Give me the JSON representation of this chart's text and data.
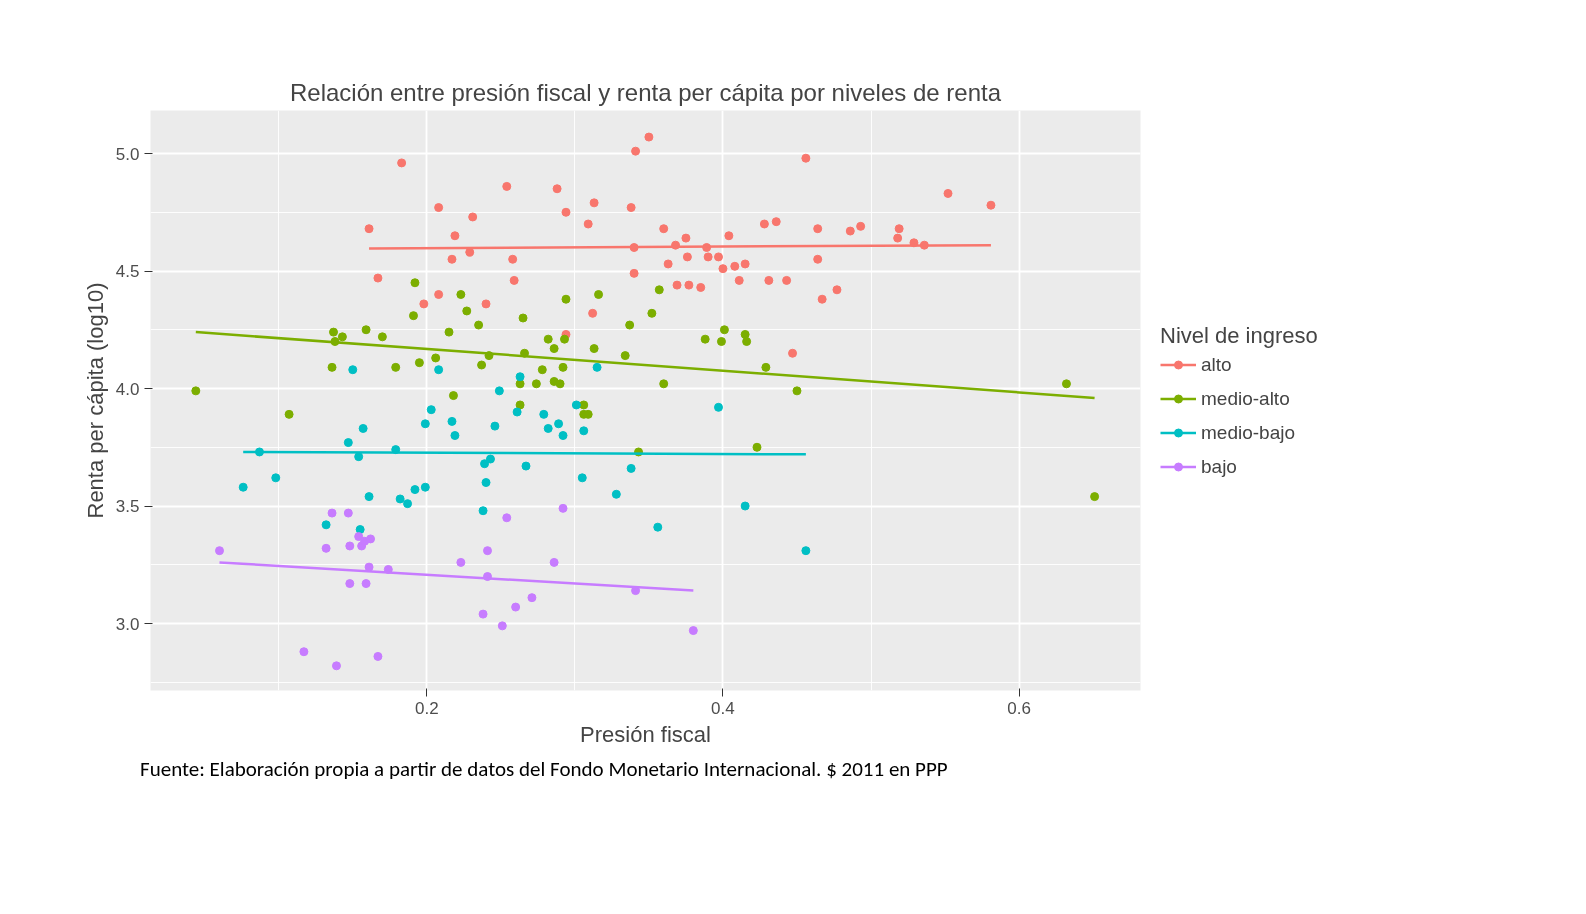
{
  "chart_data": {
    "type": "scatter",
    "title": "Relación entre presión fiscal y renta per cápita por niveles de renta",
    "xlabel": "Presión fiscal",
    "ylabel": "Renta per cápita (log10)",
    "legend_title": "Nivel de ingreso",
    "legend": "right",
    "grid": true,
    "marker": "circle",
    "xlim": [
      0.0134,
      0.682
    ],
    "ylim": [
      2.715,
      5.183
    ],
    "xticks": [
      0.2,
      0.4,
      0.6
    ],
    "yticks": [
      {
        "value": 3,
        "label": "3.0"
      },
      {
        "value": 3.5,
        "label": "3.5"
      },
      {
        "value": 4,
        "label": "4.0"
      },
      {
        "value": 4.5,
        "label": "4.5"
      },
      {
        "value": 5,
        "label": "5.0"
      }
    ],
    "annotations": [
      "Fuente: Elaboración propia a partir de datos del Fondo Monetario Internacional. $ 2011 en PPP"
    ],
    "series": [
      {
        "name": "alto",
        "color": "#f8766d",
        "x": [
          0.183,
          0.341,
          0.35,
          0.456,
          0.254,
          0.288,
          0.552,
          0.581,
          0.208,
          0.294,
          0.313,
          0.338,
          0.231,
          0.309,
          0.161,
          0.36,
          0.428,
          0.436,
          0.464,
          0.486,
          0.493,
          0.519,
          0.219,
          0.404,
          0.375,
          0.518,
          0.529,
          0.536,
          0.368,
          0.389,
          0.229,
          0.34,
          0.217,
          0.258,
          0.376,
          0.39,
          0.397,
          0.363,
          0.464,
          0.4,
          0.408,
          0.415,
          0.34,
          0.167,
          0.259,
          0.411,
          0.431,
          0.443,
          0.369,
          0.377,
          0.385,
          0.477,
          0.208,
          0.467,
          0.198,
          0.24,
          0.312,
          0.294,
          0.447
        ],
        "values": [
          4.96,
          5.01,
          5.07,
          4.98,
          4.86,
          4.85,
          4.83,
          4.78,
          4.77,
          4.75,
          4.79,
          4.77,
          4.73,
          4.7,
          4.68,
          4.68,
          4.7,
          4.71,
          4.68,
          4.67,
          4.69,
          4.68,
          4.65,
          4.65,
          4.64,
          4.64,
          4.62,
          4.61,
          4.61,
          4.6,
          4.58,
          4.6,
          4.55,
          4.55,
          4.56,
          4.56,
          4.56,
          4.53,
          4.55,
          4.51,
          4.52,
          4.53,
          4.49,
          4.47,
          4.46,
          4.46,
          4.46,
          4.46,
          4.44,
          4.44,
          4.43,
          4.42,
          4.4,
          4.38,
          4.36,
          4.36,
          4.32,
          4.23,
          4.15
        ]
      },
      {
        "type": "line",
        "marker": "none",
        "color": "#f8766d",
        "x": [
          0.161,
          0.581
        ],
        "values": [
          4.596,
          4.61
        ]
      },
      {
        "name": "medio-alto",
        "color": "#7cae00",
        "x": [
          0.044,
          0.107,
          0.136,
          0.137,
          0.138,
          0.143,
          0.159,
          0.17,
          0.179,
          0.191,
          0.192,
          0.195,
          0.206,
          0.215,
          0.218,
          0.223,
          0.227,
          0.235,
          0.237,
          0.242,
          0.265,
          0.263,
          0.263,
          0.266,
          0.274,
          0.278,
          0.282,
          0.286,
          0.286,
          0.29,
          0.292,
          0.293,
          0.294,
          0.306,
          0.306,
          0.309,
          0.313,
          0.316,
          0.334,
          0.337,
          0.343,
          0.352,
          0.357,
          0.36,
          0.388,
          0.399,
          0.401,
          0.415,
          0.416,
          0.423,
          0.429,
          0.45,
          0.632,
          0.651
        ],
        "values": [
          3.99,
          3.89,
          4.09,
          4.24,
          4.2,
          4.22,
          4.25,
          4.22,
          4.09,
          4.31,
          4.45,
          4.11,
          4.13,
          4.24,
          3.97,
          4.4,
          4.33,
          4.27,
          4.1,
          4.14,
          4.3,
          4.02,
          3.93,
          4.15,
          4.02,
          4.08,
          4.21,
          4.17,
          4.03,
          4.02,
          4.09,
          4.21,
          4.38,
          3.93,
          3.89,
          3.89,
          4.17,
          4.4,
          4.14,
          4.27,
          3.73,
          4.32,
          4.42,
          4.02,
          4.21,
          4.2,
          4.25,
          4.23,
          4.2,
          3.75,
          4.09,
          3.99,
          4.02,
          3.54
        ]
      },
      {
        "type": "line",
        "marker": "none",
        "color": "#7cae00",
        "x": [
          0.044,
          0.651
        ],
        "values": [
          4.24,
          3.96
        ]
      },
      {
        "name": "medio-bajo",
        "color": "#00bfc4",
        "x": [
          0.076,
          0.087,
          0.098,
          0.132,
          0.147,
          0.15,
          0.154,
          0.157,
          0.155,
          0.161,
          0.179,
          0.182,
          0.187,
          0.192,
          0.199,
          0.199,
          0.203,
          0.208,
          0.217,
          0.219,
          0.238,
          0.24,
          0.239,
          0.243,
          0.246,
          0.249,
          0.261,
          0.263,
          0.267,
          0.279,
          0.282,
          0.289,
          0.292,
          0.301,
          0.306,
          0.305,
          0.315,
          0.328,
          0.338,
          0.356,
          0.397,
          0.415,
          0.456
        ],
        "values": [
          3.58,
          3.73,
          3.62,
          3.42,
          3.77,
          4.08,
          3.71,
          3.83,
          3.4,
          3.54,
          3.74,
          3.53,
          3.51,
          3.57,
          3.58,
          3.85,
          3.91,
          4.08,
          3.86,
          3.8,
          3.48,
          3.6,
          3.68,
          3.7,
          3.84,
          3.99,
          3.9,
          4.05,
          3.67,
          3.89,
          3.83,
          3.85,
          3.8,
          3.93,
          3.82,
          3.62,
          4.09,
          3.55,
          3.66,
          3.41,
          3.92,
          3.5,
          3.31
        ]
      },
      {
        "type": "line",
        "marker": "none",
        "color": "#00bfc4",
        "x": [
          0.076,
          0.456
        ],
        "values": [
          3.73,
          3.72
        ]
      },
      {
        "name": "bajo",
        "color": "#c77cff",
        "x": [
          0.06,
          0.117,
          0.132,
          0.136,
          0.139,
          0.147,
          0.148,
          0.148,
          0.154,
          0.156,
          0.158,
          0.159,
          0.161,
          0.162,
          0.167,
          0.174,
          0.223,
          0.238,
          0.241,
          0.241,
          0.251,
          0.254,
          0.26,
          0.271,
          0.286,
          0.292,
          0.341,
          0.38
        ],
        "values": [
          3.31,
          2.88,
          3.32,
          3.47,
          2.82,
          3.47,
          3.33,
          3.17,
          3.37,
          3.33,
          3.35,
          3.17,
          3.24,
          3.36,
          2.86,
          3.23,
          3.26,
          3.04,
          3.2,
          3.31,
          2.99,
          3.45,
          3.07,
          3.11,
          3.26,
          3.49,
          3.14,
          2.97
        ]
      },
      {
        "type": "line",
        "marker": "none",
        "color": "#c77cff",
        "x": [
          0.06,
          0.38
        ],
        "values": [
          3.26,
          3.14
        ]
      }
    ]
  }
}
